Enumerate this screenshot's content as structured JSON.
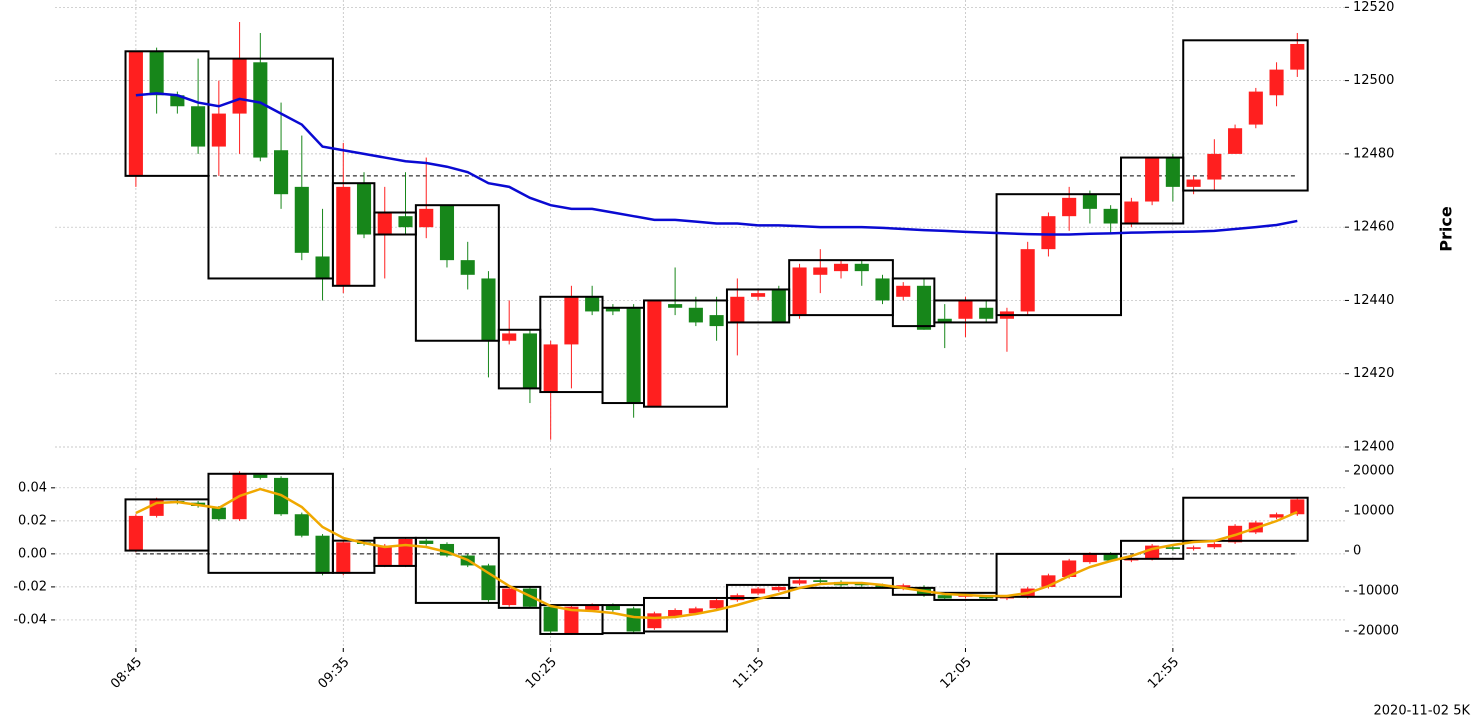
{
  "chart_data": {
    "type": "candlestick",
    "footer": "2020-11-02 5K",
    "xlim": [
      -3.9,
      58.3
    ],
    "xticks": [
      {
        "value": 0,
        "label": "08:45"
      },
      {
        "value": 10,
        "label": "09:35"
      },
      {
        "value": 20,
        "label": "10:25"
      },
      {
        "value": 30,
        "label": "11:15"
      },
      {
        "value": 40,
        "label": "12:05"
      },
      {
        "value": 50,
        "label": "12:55"
      }
    ],
    "up_color": "#ff1f1f",
    "down_color": "#17861a",
    "box_color": "#000000",
    "panels": [
      {
        "ylabel": "Price",
        "ylim": [
          12397,
          12522
        ],
        "yticks": [
          12400,
          12420,
          12440,
          12460,
          12480,
          12500,
          12520
        ],
        "axis_side": "right",
        "grid": true,
        "hline": 12474,
        "candles": {
          "open": [
            12474,
            12508,
            12496,
            12493,
            12482,
            12491,
            12505,
            12481,
            12471,
            12452,
            12444,
            12472,
            12458,
            12463,
            12460,
            12466,
            12451,
            12446,
            12429,
            12431,
            12415,
            12428,
            12441,
            12438,
            12438,
            12411,
            12439,
            12438,
            12436,
            12434,
            12441,
            12443,
            12436,
            12447,
            12448,
            12450,
            12446,
            12441,
            12444,
            12435,
            12435,
            12438,
            12435,
            12437,
            12454,
            12463,
            12469,
            12465,
            12461,
            12467,
            12479,
            12471,
            12473,
            12480,
            12488,
            12496,
            12503
          ],
          "high": [
            12508,
            12509,
            12497,
            12506,
            12500,
            12516,
            12513,
            12494,
            12485,
            12465,
            12483,
            12475,
            12471,
            12475,
            12479,
            12466,
            12456,
            12448,
            12440,
            12432,
            12429,
            12444,
            12444,
            12439,
            12439,
            12440,
            12449,
            12441,
            12441,
            12446,
            12443,
            12444,
            12450,
            12454,
            12451,
            12451,
            12447,
            12445,
            12446,
            12439,
            12441,
            12440,
            12438,
            12456,
            12464,
            12471,
            12470,
            12466,
            12468,
            12479,
            12480,
            12474,
            12484,
            12488,
            12498,
            12505,
            12513
          ],
          "low": [
            12471,
            12491,
            12491,
            12480,
            12474,
            12480,
            12478,
            12465,
            12451,
            12440,
            12442,
            12457,
            12446,
            12458,
            12457,
            12449,
            12443,
            12419,
            12428,
            12412,
            12402,
            12416,
            12436,
            12436,
            12408,
            12411,
            12436,
            12433,
            12429,
            12425,
            12440,
            12434,
            12435,
            12442,
            12446,
            12444,
            12439,
            12440,
            12432,
            12427,
            12430,
            12434,
            12426,
            12436,
            12452,
            12459,
            12461,
            12458,
            12460,
            12466,
            12467,
            12469,
            12470,
            12480,
            12487,
            12493,
            12501
          ],
          "close": [
            12508,
            12496,
            12493,
            12482,
            12491,
            12506,
            12479,
            12469,
            12453,
            12446,
            12471,
            12458,
            12464,
            12460,
            12465,
            12451,
            12447,
            12429,
            12431,
            12416,
            12428,
            12441,
            12437,
            12437,
            12412,
            12440,
            12438,
            12434,
            12433,
            12441,
            12442,
            12434,
            12449,
            12449,
            12450,
            12448,
            12440,
            12444,
            12432,
            12434,
            12440,
            12435,
            12437,
            12454,
            12463,
            12468,
            12465,
            12461,
            12467,
            12479,
            12471,
            12473,
            12480,
            12487,
            12497,
            12503,
            12510
          ]
        },
        "line": {
          "color": "#0a0ad2",
          "axis": "y",
          "values": [
            12496,
            12496.5,
            12496,
            12494,
            12493,
            12495,
            12494,
            12491,
            12488,
            12482,
            12481,
            12480,
            12479,
            12478,
            12477.5,
            12476.5,
            12475,
            12472,
            12471,
            12468,
            12466,
            12465,
            12465,
            12464,
            12463,
            12462,
            12462,
            12461.5,
            12461,
            12461,
            12460.5,
            12460.5,
            12460.3,
            12460,
            12460,
            12460,
            12459.8,
            12459.5,
            12459.2,
            12459,
            12458.7,
            12458.5,
            12458.3,
            12458.1,
            12458,
            12458,
            12458.2,
            12458.3,
            12458.5,
            12458.6,
            12458.7,
            12458.8,
            12459,
            12459.5,
            12460,
            12460.6,
            12461.7
          ]
        },
        "boxes": {
          "start": [
            0,
            4,
            10,
            12,
            14,
            18,
            20,
            23,
            25,
            29,
            32,
            37,
            39,
            42,
            48,
            51
          ],
          "end": [
            3,
            9,
            11,
            13,
            17,
            19,
            22,
            24,
            28,
            31,
            36,
            38,
            41,
            47,
            50,
            56
          ],
          "top": [
            12508,
            12506,
            12472,
            12464,
            12466,
            12432,
            12441,
            12438,
            12440,
            12443,
            12451,
            12446,
            12440,
            12469,
            12479,
            12511
          ],
          "bottom": [
            12474,
            12446,
            12444,
            12458,
            12429,
            12416,
            12415,
            12412,
            12411,
            12434,
            12436,
            12433,
            12434,
            12436,
            12461,
            12470
          ]
        }
      },
      {
        "ylim": [
          -0.057,
          0.052
        ],
        "yticks": [
          -0.04,
          -0.02,
          {
            "value": 0,
            "label": "0.00"
          },
          0.02,
          0.04
        ],
        "axis_side": "left",
        "grid": true,
        "hline": 0,
        "y2lim": [
          -24250,
          20750
        ],
        "y2ticks": [
          -20000,
          -10000,
          0,
          10000,
          20000
        ],
        "candles": {
          "open": [
            0.002,
            0.023,
            0.032,
            0.031,
            0.028,
            0.021,
            0.048,
            0.046,
            0.024,
            0.011,
            -0.012,
            0.007,
            -0.007,
            -0.007,
            0.008,
            0.006,
            -0.001,
            -0.007,
            -0.031,
            -0.021,
            -0.032,
            -0.048,
            -0.034,
            -0.031,
            -0.033,
            -0.045,
            -0.038,
            -0.036,
            -0.033,
            -0.028,
            -0.024,
            -0.022,
            -0.018,
            -0.016,
            -0.017,
            -0.018,
            -0.019,
            -0.021,
            -0.02,
            -0.025,
            -0.026,
            -0.026,
            -0.027,
            -0.026,
            -0.02,
            -0.014,
            -0.005,
            0,
            -0.004,
            -0.003,
            0.004,
            0.003,
            0.004,
            0.007,
            0.013,
            0.022,
            0.024
          ],
          "high": [
            0.024,
            0.034,
            0.033,
            0.032,
            0.029,
            0.05,
            0.049,
            0.047,
            0.025,
            0.012,
            0.008,
            0.008,
            0.006,
            0.01,
            0.009,
            0.007,
            0,
            -0.006,
            -0.02,
            -0.02,
            -0.031,
            -0.031,
            -0.03,
            -0.03,
            -0.032,
            -0.035,
            -0.033,
            -0.032,
            -0.027,
            -0.024,
            -0.02,
            -0.019,
            -0.015,
            -0.015,
            -0.016,
            -0.017,
            -0.018,
            -0.018,
            -0.019,
            -0.024,
            -0.024,
            -0.025,
            -0.025,
            -0.02,
            -0.012,
            -0.003,
            0.001,
            0.001,
            -0.002,
            0.006,
            0.005,
            0.005,
            0.007,
            0.018,
            0.02,
            0.025,
            0.034
          ],
          "low": [
            0.001,
            0.022,
            0.03,
            0.028,
            0.02,
            0.02,
            0.045,
            0.023,
            0.01,
            -0.013,
            -0.013,
            0.005,
            -0.008,
            -0.008,
            0.005,
            -0.002,
            -0.008,
            -0.029,
            -0.032,
            -0.033,
            -0.048,
            -0.049,
            -0.035,
            -0.035,
            -0.048,
            -0.046,
            -0.039,
            -0.037,
            -0.034,
            -0.029,
            -0.025,
            -0.023,
            -0.019,
            -0.018,
            -0.02,
            -0.02,
            -0.021,
            -0.022,
            -0.026,
            -0.028,
            -0.027,
            -0.028,
            -0.028,
            -0.027,
            -0.021,
            -0.015,
            -0.006,
            -0.005,
            -0.005,
            -0.004,
            0.002,
            0.002,
            0.003,
            0.006,
            0.012,
            0.021,
            0.023
          ],
          "close": [
            0.023,
            0.033,
            0.031,
            0.029,
            0.021,
            0.049,
            0.046,
            0.024,
            0.011,
            -0.012,
            0.007,
            0.006,
            0.005,
            0.009,
            0.006,
            -0.001,
            -0.007,
            -0.028,
            -0.021,
            -0.032,
            -0.047,
            -0.032,
            -0.031,
            -0.034,
            -0.047,
            -0.036,
            -0.034,
            -0.033,
            -0.028,
            -0.025,
            -0.021,
            -0.02,
            -0.016,
            -0.017,
            -0.019,
            -0.019,
            -0.02,
            -0.019,
            -0.025,
            -0.027,
            -0.025,
            -0.027,
            -0.026,
            -0.021,
            -0.013,
            -0.004,
            0,
            -0.004,
            -0.003,
            0.005,
            0.003,
            0.004,
            0.006,
            0.017,
            0.019,
            0.024,
            0.033
          ]
        },
        "line": {
          "color": "#f0a800",
          "axis": "y2",
          "values": [
            9500,
            12000,
            12250,
            11500,
            10750,
            13750,
            15500,
            14000,
            11000,
            6000,
            3250,
            2000,
            1000,
            1500,
            1000,
            -250,
            -2250,
            -5500,
            -8750,
            -11250,
            -13750,
            -14750,
            -15000,
            -15500,
            -16500,
            -16750,
            -16500,
            -15750,
            -14750,
            -13500,
            -12000,
            -10750,
            -9250,
            -8250,
            -8000,
            -8000,
            -8500,
            -9250,
            -10000,
            -10750,
            -11000,
            -11250,
            -11250,
            -10500,
            -8750,
            -6250,
            -4000,
            -2500,
            -1250,
            500,
            1500,
            2250,
            2500,
            4000,
            5750,
            7500,
            9750
          ]
        },
        "boxes": {
          "start": [
            0,
            4,
            10,
            12,
            14,
            18,
            20,
            23,
            25,
            29,
            32,
            37,
            39,
            42,
            48,
            51
          ],
          "end": [
            3,
            9,
            11,
            13,
            17,
            19,
            22,
            24,
            28,
            31,
            36,
            38,
            41,
            47,
            50,
            56
          ],
          "top": [
            0.033,
            0.0485,
            0.008,
            0.0097,
            0.0097,
            -0.02,
            -0.031,
            -0.031,
            -0.0267,
            -0.0188,
            -0.0145,
            -0.0206,
            -0.0236,
            0,
            0.0079,
            0.034
          ],
          "bottom": [
            0.002,
            -0.0115,
            -0.0115,
            -0.0073,
            -0.0297,
            -0.0327,
            -0.0485,
            -0.048,
            -0.047,
            -0.0267,
            -0.0206,
            -0.0248,
            -0.0279,
            -0.026,
            -0.003,
            0.0079
          ]
        }
      }
    ]
  }
}
